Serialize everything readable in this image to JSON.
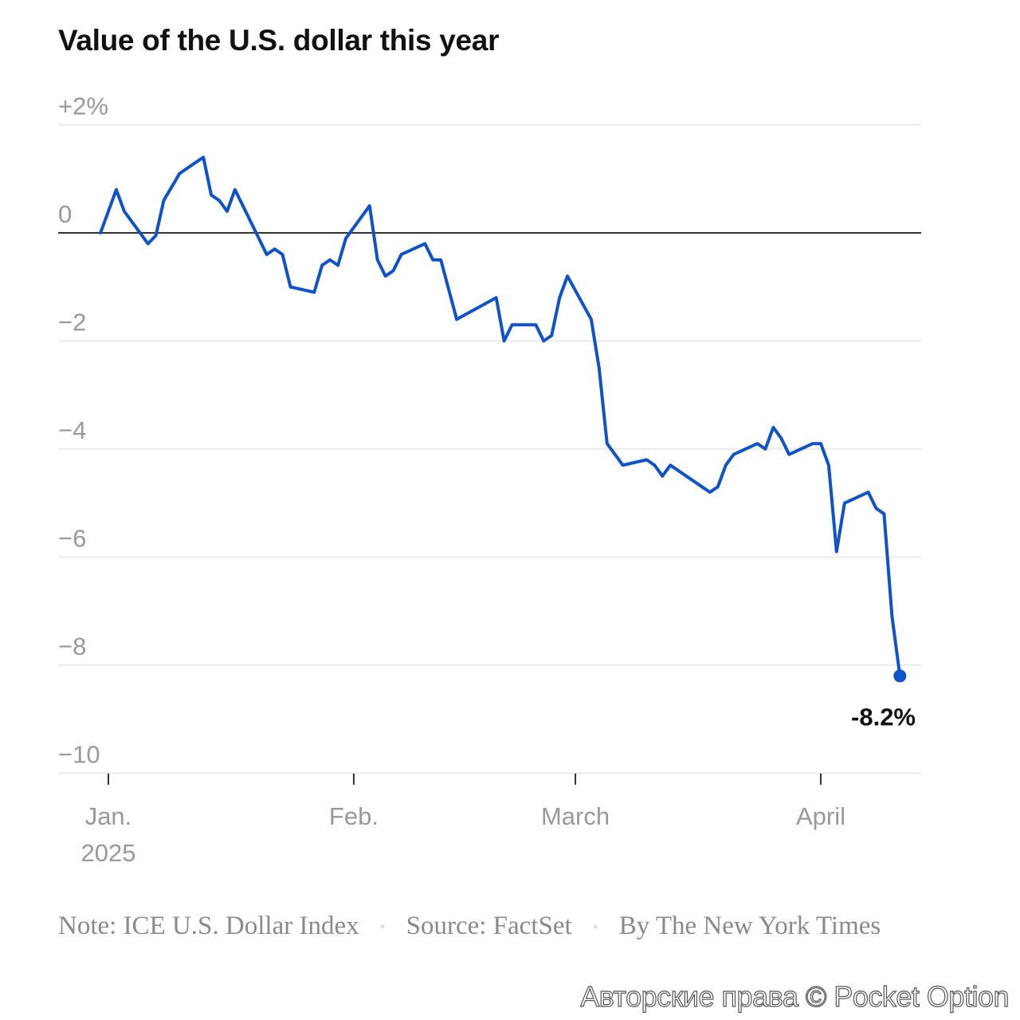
{
  "chart_data": {
    "type": "line",
    "title": "Value of the U.S. dollar this year",
    "xlabel": "",
    "ylabel": "",
    "x_unit": "days since Jan. 1, 2025",
    "ylim": [
      -10,
      2
    ],
    "xlim": [
      -1,
      100
    ],
    "grid": true,
    "y_ticks": [
      {
        "value": 2,
        "label": "+2%"
      },
      {
        "value": 0,
        "label": "0"
      },
      {
        "value": -2,
        "label": "−2"
      },
      {
        "value": -4,
        "label": "−4"
      },
      {
        "value": -6,
        "label": "−6"
      },
      {
        "value": -8,
        "label": "−8"
      },
      {
        "value": -10,
        "label": "−10"
      }
    ],
    "x_ticks": [
      {
        "value": 0,
        "label": "Jan.",
        "sublabel": "2025"
      },
      {
        "value": 31,
        "label": "Feb."
      },
      {
        "value": 59,
        "label": "March"
      },
      {
        "value": 90,
        "label": "April"
      }
    ],
    "series": [
      {
        "name": "ICE U.S. Dollar Index change",
        "color": "#0f52c9",
        "x": [
          -1,
          1,
          2,
          5,
          6,
          7,
          9,
          12,
          13,
          14,
          15,
          16,
          18,
          20,
          21,
          22,
          23,
          26,
          27,
          28,
          29,
          30,
          33,
          34,
          35,
          36,
          37,
          40,
          41,
          42,
          44,
          49,
          50,
          51,
          54,
          55,
          56,
          57,
          58,
          61,
          62,
          63,
          65,
          68,
          69,
          70,
          71,
          76,
          77,
          78,
          79,
          82,
          83,
          84,
          85,
          86,
          89,
          90,
          91,
          92,
          93,
          96,
          97,
          98,
          99,
          100
        ],
        "values": [
          0,
          0.8,
          0.4,
          -0.2,
          -0.05,
          0.6,
          1.1,
          1.4,
          0.7,
          0.6,
          0.4,
          0.8,
          0.2,
          -0.4,
          -0.3,
          -0.4,
          -1.0,
          -1.1,
          -0.6,
          -0.5,
          -0.6,
          -0.1,
          0.5,
          -0.5,
          -0.8,
          -0.7,
          -0.4,
          -0.2,
          -0.5,
          -0.5,
          -1.6,
          -1.2,
          -2.0,
          -1.7,
          -1.7,
          -2.0,
          -1.9,
          -1.2,
          -0.8,
          -1.6,
          -2.5,
          -3.9,
          -4.3,
          -4.2,
          -4.3,
          -4.5,
          -4.3,
          -4.8,
          -4.7,
          -4.3,
          -4.1,
          -3.9,
          -4.0,
          -3.6,
          -3.8,
          -4.1,
          -3.9,
          -3.9,
          -4.3,
          -5.9,
          -5.0,
          -4.8,
          -5.1,
          -5.2,
          -7.1,
          -8.2
        ]
      }
    ],
    "annotations": [
      {
        "label": "-8.2%",
        "x": 100,
        "value": -8.2
      }
    ]
  },
  "footer": {
    "note": "Note: ICE U.S. Dollar Index",
    "source": "Source: FactSet",
    "credit": "By The New York Times",
    "separator": "•"
  },
  "watermark": "Авторские права © Pocket Option",
  "colors": {
    "line": "#0f52c9",
    "grid": "#e6e6e6",
    "zero": "#333333",
    "tick_text": "#999999"
  }
}
